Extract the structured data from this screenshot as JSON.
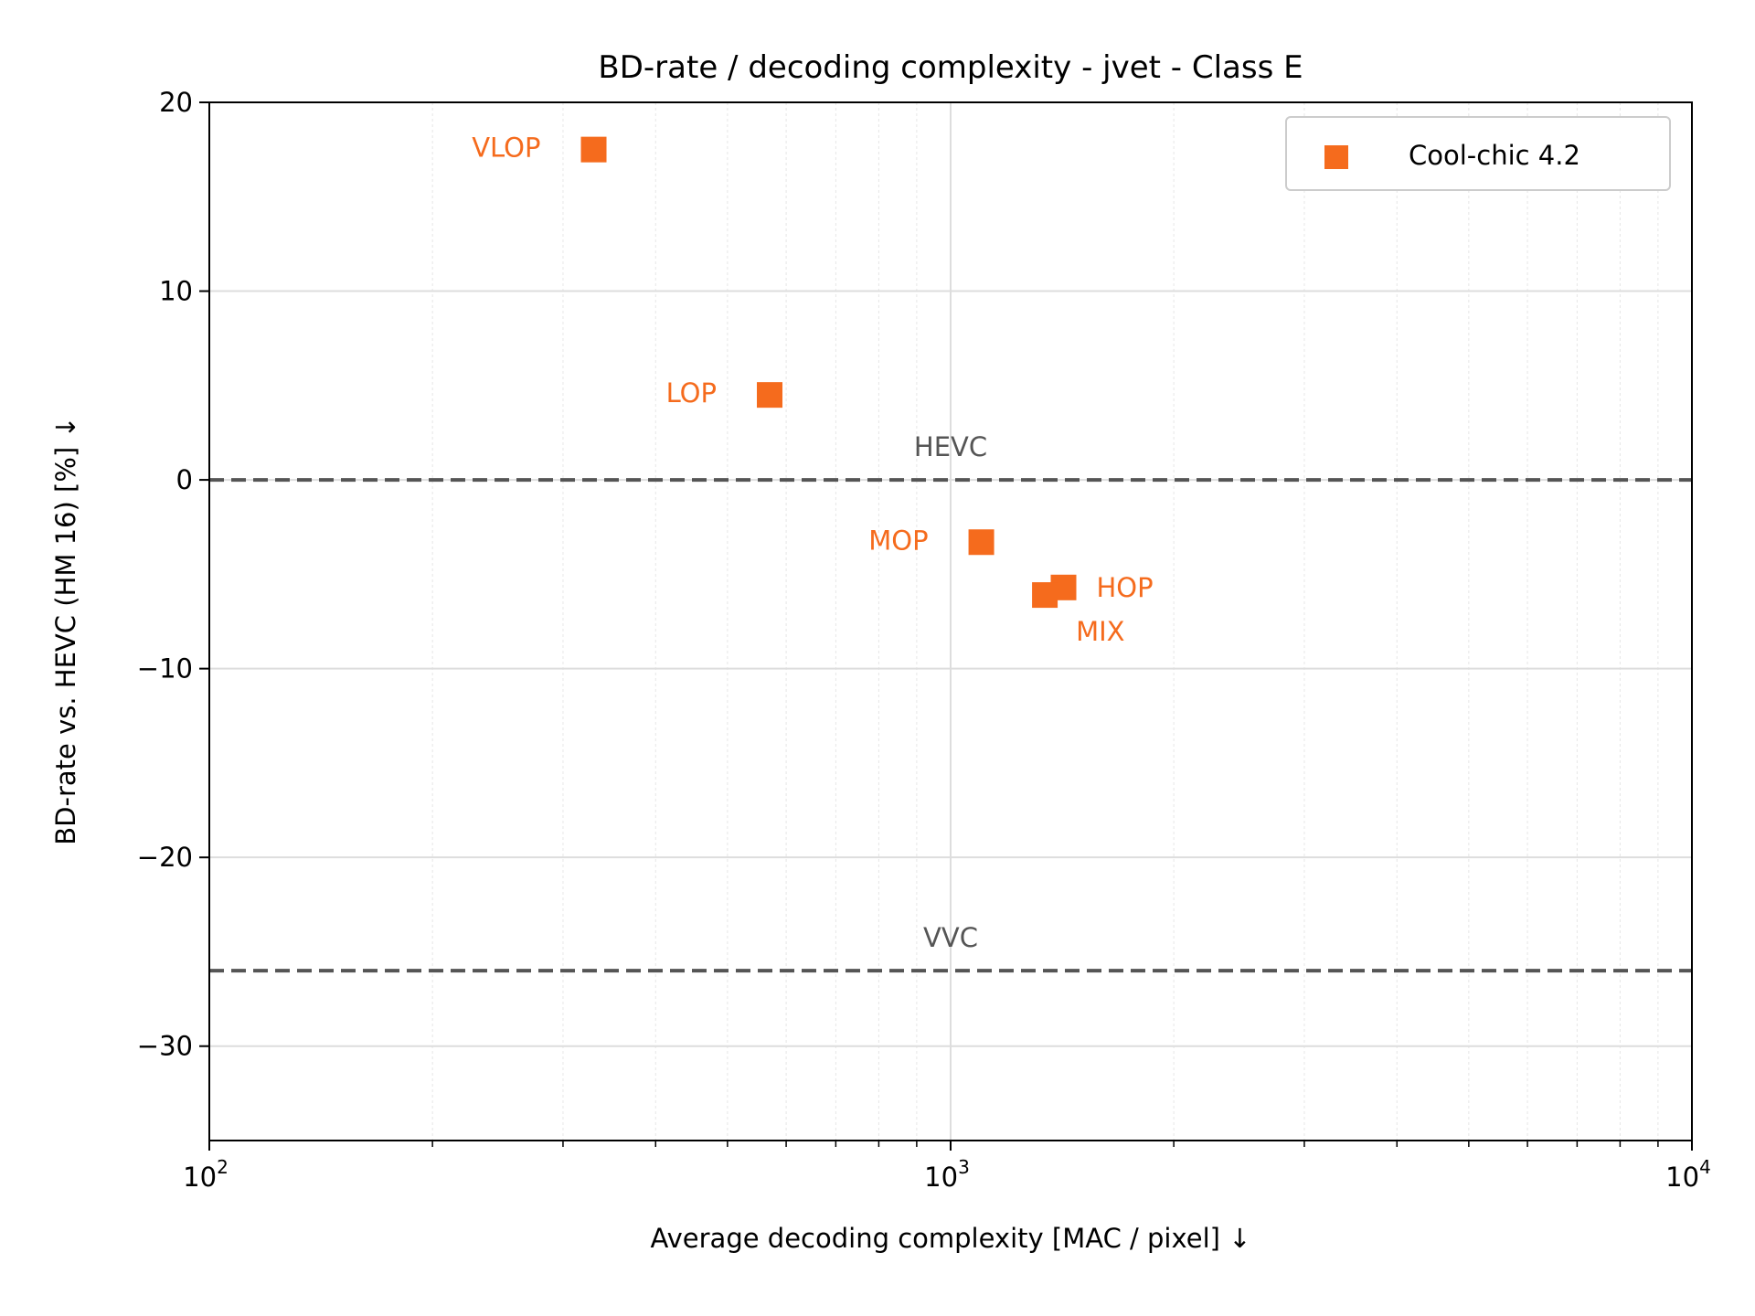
{
  "chart_data": {
    "type": "scatter",
    "title": "BD-rate / decoding complexity - jvet - Class E",
    "xlabel": "Average decoding complexity [MAC / pixel]  ↓",
    "ylabel": "BD-rate vs. HEVC (HM 16) [%]  ↓",
    "xscale": "log",
    "xlim": [
      100,
      10000
    ],
    "ylim": [
      -35,
      20
    ],
    "x_ticks": [
      {
        "value": 100,
        "base": "10",
        "exp": "2"
      },
      {
        "value": 1000,
        "base": "10",
        "exp": "3"
      },
      {
        "value": 10000,
        "base": "10",
        "exp": "4"
      }
    ],
    "y_ticks": [
      {
        "value": 20,
        "label": "20"
      },
      {
        "value": 10,
        "label": "10"
      },
      {
        "value": 0,
        "label": "0"
      },
      {
        "value": -10,
        "label": "−10"
      },
      {
        "value": -20,
        "label": "−20"
      },
      {
        "value": -30,
        "label": "−30"
      }
    ],
    "grid": true,
    "legend_position": "top-right",
    "series": [
      {
        "name": "Cool-chic 4.2",
        "color": "#f56b1d",
        "marker": "square",
        "points": [
          {
            "label": "VLOP",
            "x": 330,
            "y": 17.5
          },
          {
            "label": "LOP",
            "x": 570,
            "y": 4.5
          },
          {
            "label": "MOP",
            "x": 1100,
            "y": -3.3
          },
          {
            "label": "HOP",
            "x": 1420,
            "y": -5.7
          },
          {
            "label": "MIX",
            "x": 1340,
            "y": -6.1
          }
        ]
      }
    ],
    "reference_lines": [
      {
        "label": "HEVC",
        "y": 0,
        "color": "#555555"
      },
      {
        "label": "VVC",
        "y": -26,
        "color": "#555555"
      }
    ]
  }
}
